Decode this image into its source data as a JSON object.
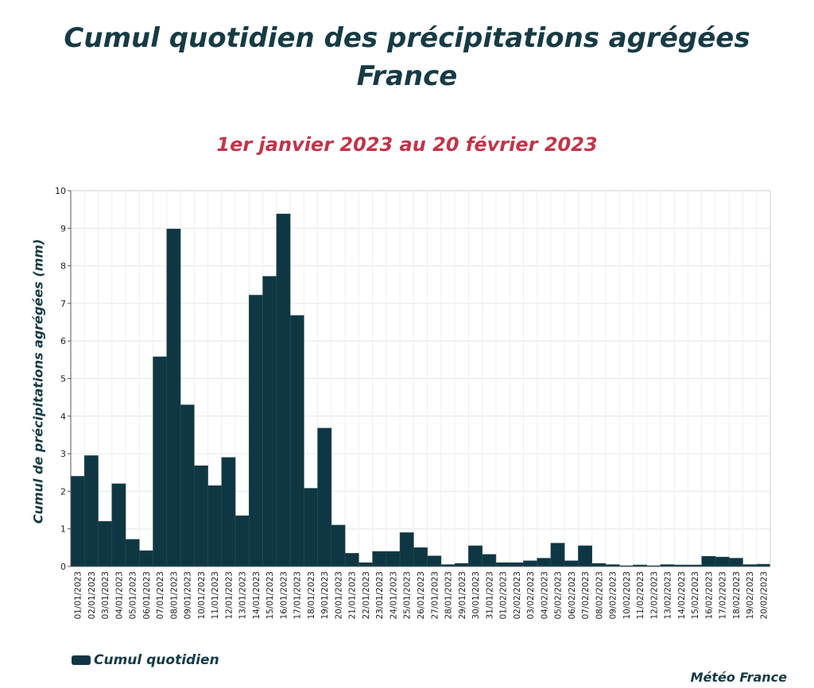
{
  "title_line1": "Cumul quotidien des précipitations agrégées",
  "title_line2": "France",
  "subtitle": "1er janvier 2023 au 20 février 2023",
  "source": "Météo France",
  "colors": {
    "bar": "#0e3743",
    "title": "#163b45",
    "subtitle": "#c23448"
  },
  "chart_data": {
    "type": "bar",
    "title": "Cumul quotidien des précipitations agrégées France",
    "subtitle": "1er janvier 2023 au 20 février 2023",
    "xlabel": "",
    "ylabel": "Cumul de précipitations agrégées (mm)",
    "ylim": [
      0,
      10
    ],
    "yticks": [
      0,
      1,
      2,
      3,
      4,
      5,
      6,
      7,
      8,
      9,
      10
    ],
    "grid": true,
    "legend_position": "bottom-left",
    "categories": [
      "01/01/2023",
      "02/01/2023",
      "03/01/2023",
      "04/01/2023",
      "05/01/2023",
      "06/01/2023",
      "07/01/2023",
      "08/01/2023",
      "09/01/2023",
      "10/01/2023",
      "11/01/2023",
      "12/01/2023",
      "13/01/2023",
      "14/01/2023",
      "15/01/2023",
      "16/01/2023",
      "17/01/2023",
      "18/01/2023",
      "19/01/2023",
      "20/01/2023",
      "21/01/2023",
      "22/01/2023",
      "23/01/2023",
      "24/01/2023",
      "25/01/2023",
      "26/01/2023",
      "27/01/2023",
      "28/01/2023",
      "29/01/2023",
      "30/01/2023",
      "31/01/2023",
      "01/02/2023",
      "02/02/2023",
      "03/02/2023",
      "04/02/2023",
      "05/02/2023",
      "06/02/2023",
      "07/02/2023",
      "08/02/2023",
      "09/02/2023",
      "10/02/2023",
      "11/02/2023",
      "12/02/2023",
      "13/02/2023",
      "14/02/2023",
      "15/02/2023",
      "16/02/2023",
      "17/02/2023",
      "18/02/2023",
      "19/02/2023",
      "20/02/2023"
    ],
    "series": [
      {
        "name": "Cumul quotidien",
        "values": [
          2.4,
          2.95,
          1.2,
          2.2,
          0.72,
          0.42,
          5.58,
          8.98,
          4.3,
          2.68,
          2.15,
          2.9,
          1.35,
          7.22,
          7.72,
          9.38,
          6.68,
          2.08,
          3.68,
          1.1,
          0.35,
          0.1,
          0.4,
          0.4,
          0.9,
          0.5,
          0.28,
          0.05,
          0.08,
          0.55,
          0.32,
          0.1,
          0.1,
          0.15,
          0.22,
          0.62,
          0.15,
          0.55,
          0.08,
          0.05,
          0.02,
          0.04,
          0.02,
          0.05,
          0.04,
          0.04,
          0.27,
          0.25,
          0.22,
          0.05,
          0.06
        ]
      }
    ]
  }
}
